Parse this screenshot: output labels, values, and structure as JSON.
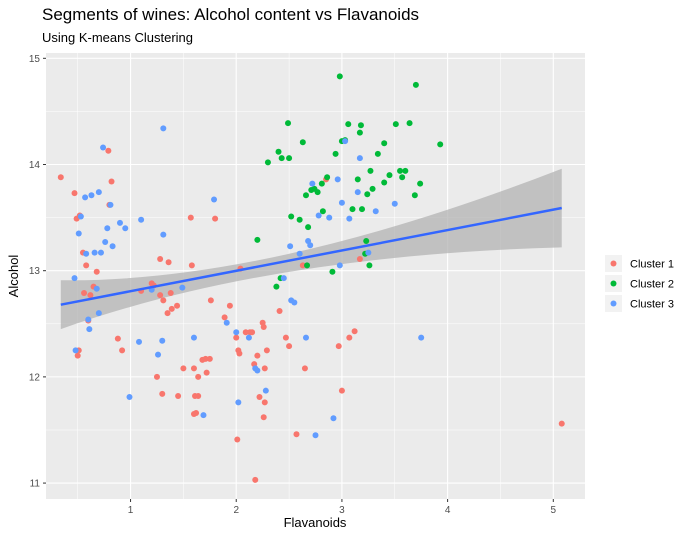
{
  "chart_data": {
    "type": "scatter",
    "title": "Segments of wines: Alcohol content vs Flavanoids",
    "subtitle": "Using K-means Clustering",
    "xlabel": "Flavanoids",
    "ylabel": "Alcohol",
    "xlim": [
      0.2,
      5.3
    ],
    "ylim": [
      10.85,
      15.05
    ],
    "x_ticks": [
      1,
      2,
      3,
      4,
      5
    ],
    "y_ticks": [
      11,
      12,
      13,
      14,
      15
    ],
    "grid": true,
    "legend_position": "right",
    "colors": {
      "panel": "#ebebeb",
      "grid_major": "#ffffff",
      "trend_line": "#3366ff",
      "ribbon": "#b3b3b3"
    },
    "trend": {
      "type": "linear",
      "x": [
        0.34,
        5.08
      ],
      "y": [
        12.68,
        13.59
      ],
      "ci_lower": [
        12.45,
        13.22
      ],
      "ci_upper": [
        12.91,
        13.96
      ],
      "ci_mid_lower": [
        12.99
      ],
      "ci_mid_upper": [
        13.16
      ],
      "ci_mid_x": [
        2.3
      ]
    },
    "series": [
      {
        "name": "Cluster 1",
        "color": "#f8766d",
        "points": [
          [
            0.34,
            13.88
          ],
          [
            0.47,
            13.73
          ],
          [
            0.49,
            13.49
          ],
          [
            0.52,
            13.52
          ],
          [
            0.55,
            13.17
          ],
          [
            0.58,
            13.05
          ],
          [
            0.5,
            12.2
          ],
          [
            0.51,
            12.25
          ],
          [
            0.56,
            12.79
          ],
          [
            0.6,
            12.53
          ],
          [
            0.62,
            12.77
          ],
          [
            0.65,
            12.85
          ],
          [
            0.68,
            12.99
          ],
          [
            0.79,
            14.13
          ],
          [
            0.82,
            13.84
          ],
          [
            0.8,
            13.62
          ],
          [
            0.88,
            12.36
          ],
          [
            0.92,
            12.25
          ],
          [
            1.1,
            12.81
          ],
          [
            1.2,
            12.88
          ],
          [
            1.22,
            12.86
          ],
          [
            1.25,
            12.0
          ],
          [
            1.28,
            13.11
          ],
          [
            1.28,
            12.77
          ],
          [
            1.31,
            12.72
          ],
          [
            1.35,
            12.6
          ],
          [
            1.36,
            13.08
          ],
          [
            1.38,
            12.79
          ],
          [
            1.39,
            12.64
          ],
          [
            1.44,
            12.67
          ],
          [
            1.3,
            11.84
          ],
          [
            1.45,
            11.82
          ],
          [
            1.5,
            12.08
          ],
          [
            1.57,
            13.5
          ],
          [
            1.58,
            13.05
          ],
          [
            1.6,
            12.08
          ],
          [
            1.61,
            11.82
          ],
          [
            1.62,
            11.66
          ],
          [
            1.6,
            11.65
          ],
          [
            1.64,
            12.0
          ],
          [
            1.64,
            11.82
          ],
          [
            1.68,
            12.16
          ],
          [
            1.71,
            12.17
          ],
          [
            1.72,
            12.04
          ],
          [
            1.75,
            12.17
          ],
          [
            1.76,
            12.72
          ],
          [
            1.8,
            13.49
          ],
          [
            1.89,
            12.56
          ],
          [
            1.94,
            12.67
          ],
          [
            2.0,
            12.37
          ],
          [
            2.01,
            11.41
          ],
          [
            2.02,
            12.25
          ],
          [
            2.03,
            12.22
          ],
          [
            2.04,
            13.02
          ],
          [
            2.09,
            12.42
          ],
          [
            2.13,
            12.42
          ],
          [
            2.15,
            12.42
          ],
          [
            2.17,
            12.12
          ],
          [
            2.18,
            11.03
          ],
          [
            2.2,
            12.2
          ],
          [
            2.22,
            11.81
          ],
          [
            2.25,
            12.51
          ],
          [
            2.26,
            12.47
          ],
          [
            2.27,
            11.76
          ],
          [
            2.26,
            11.62
          ],
          [
            2.27,
            12.08
          ],
          [
            2.29,
            12.25
          ],
          [
            2.41,
            12.62
          ],
          [
            2.47,
            12.37
          ],
          [
            2.5,
            12.29
          ],
          [
            2.57,
            11.46
          ],
          [
            2.63,
            13.05
          ],
          [
            2.65,
            12.08
          ],
          [
            2.85,
            13.86
          ],
          [
            2.97,
            12.29
          ],
          [
            3.0,
            11.87
          ],
          [
            3.07,
            12.37
          ],
          [
            3.12,
            12.43
          ],
          [
            3.17,
            13.11
          ],
          [
            5.08,
            11.56
          ]
        ]
      },
      {
        "name": "Cluster 2",
        "color": "#00ba38",
        "points": [
          [
            2.3,
            14.02
          ],
          [
            2.4,
            14.12
          ],
          [
            2.43,
            14.06
          ],
          [
            2.49,
            14.39
          ],
          [
            2.5,
            14.06
          ],
          [
            2.52,
            13.51
          ],
          [
            2.2,
            13.29
          ],
          [
            2.38,
            12.85
          ],
          [
            2.42,
            12.93
          ],
          [
            2.6,
            13.48
          ],
          [
            2.63,
            14.21
          ],
          [
            2.66,
            13.71
          ],
          [
            2.68,
            13.41
          ],
          [
            2.71,
            13.76
          ],
          [
            2.74,
            13.77
          ],
          [
            2.77,
            13.74
          ],
          [
            2.81,
            13.82
          ],
          [
            2.82,
            13.56
          ],
          [
            2.86,
            13.88
          ],
          [
            2.91,
            12.99
          ],
          [
            2.94,
            14.1
          ],
          [
            2.98,
            14.83
          ],
          [
            3.0,
            14.22
          ],
          [
            3.03,
            14.23
          ],
          [
            3.06,
            14.38
          ],
          [
            3.1,
            13.58
          ],
          [
            3.15,
            13.86
          ],
          [
            3.17,
            14.3
          ],
          [
            3.18,
            14.37
          ],
          [
            3.19,
            13.58
          ],
          [
            3.24,
            13.72
          ],
          [
            3.27,
            13.94
          ],
          [
            3.29,
            13.77
          ],
          [
            3.34,
            14.1
          ],
          [
            3.4,
            14.2
          ],
          [
            3.4,
            13.83
          ],
          [
            3.45,
            13.9
          ],
          [
            3.51,
            14.38
          ],
          [
            3.55,
            13.94
          ],
          [
            3.57,
            13.88
          ],
          [
            3.6,
            13.94
          ],
          [
            3.64,
            14.39
          ],
          [
            3.69,
            13.71
          ],
          [
            3.7,
            14.75
          ],
          [
            3.74,
            13.82
          ],
          [
            3.93,
            14.19
          ],
          [
            3.26,
            13.05
          ],
          [
            3.22,
            13.16
          ],
          [
            3.23,
            13.28
          ],
          [
            2.67,
            13.05
          ]
        ]
      },
      {
        "name": "Cluster 3",
        "color": "#619cff",
        "points": [
          [
            0.47,
            12.93
          ],
          [
            0.51,
            13.35
          ],
          [
            0.53,
            13.51
          ],
          [
            0.57,
            13.69
          ],
          [
            0.58,
            13.16
          ],
          [
            0.6,
            12.54
          ],
          [
            0.61,
            12.45
          ],
          [
            0.63,
            13.71
          ],
          [
            0.66,
            13.17
          ],
          [
            0.68,
            12.83
          ],
          [
            0.7,
            12.6
          ],
          [
            0.72,
            13.17
          ],
          [
            0.7,
            13.74
          ],
          [
            0.74,
            14.16
          ],
          [
            0.76,
            13.27
          ],
          [
            0.78,
            13.4
          ],
          [
            0.81,
            13.62
          ],
          [
            0.83,
            13.23
          ],
          [
            0.9,
            13.45
          ],
          [
            0.95,
            13.4
          ],
          [
            0.48,
            12.25
          ],
          [
            0.99,
            11.81
          ],
          [
            1.08,
            12.33
          ],
          [
            1.1,
            13.48
          ],
          [
            1.2,
            12.82
          ],
          [
            1.26,
            12.21
          ],
          [
            1.3,
            12.34
          ],
          [
            1.31,
            13.34
          ],
          [
            1.31,
            14.34
          ],
          [
            1.49,
            12.84
          ],
          [
            1.6,
            12.37
          ],
          [
            1.69,
            11.64
          ],
          [
            1.79,
            13.67
          ],
          [
            1.91,
            12.51
          ],
          [
            2.0,
            12.42
          ],
          [
            2.02,
            11.76
          ],
          [
            2.12,
            12.37
          ],
          [
            2.18,
            12.08
          ],
          [
            2.2,
            12.06
          ],
          [
            2.28,
            11.87
          ],
          [
            2.45,
            12.93
          ],
          [
            2.51,
            13.23
          ],
          [
            2.52,
            12.72
          ],
          [
            2.55,
            12.7
          ],
          [
            2.6,
            13.16
          ],
          [
            2.66,
            12.37
          ],
          [
            2.68,
            13.28
          ],
          [
            2.7,
            13.24
          ],
          [
            2.72,
            13.82
          ],
          [
            2.75,
            11.45
          ],
          [
            2.78,
            13.52
          ],
          [
            2.88,
            13.5
          ],
          [
            2.92,
            11.61
          ],
          [
            2.96,
            13.86
          ],
          [
            2.98,
            13.05
          ],
          [
            3.0,
            13.64
          ],
          [
            3.03,
            14.22
          ],
          [
            3.07,
            13.49
          ],
          [
            3.15,
            13.74
          ],
          [
            3.17,
            14.06
          ],
          [
            3.25,
            13.17
          ],
          [
            3.32,
            13.56
          ],
          [
            3.5,
            13.63
          ],
          [
            3.75,
            12.37
          ]
        ]
      }
    ]
  },
  "legend": {
    "items": [
      {
        "label": "Cluster 1",
        "color": "#f8766d"
      },
      {
        "label": "Cluster 2",
        "color": "#00ba38"
      },
      {
        "label": "Cluster 3",
        "color": "#619cff"
      }
    ]
  }
}
